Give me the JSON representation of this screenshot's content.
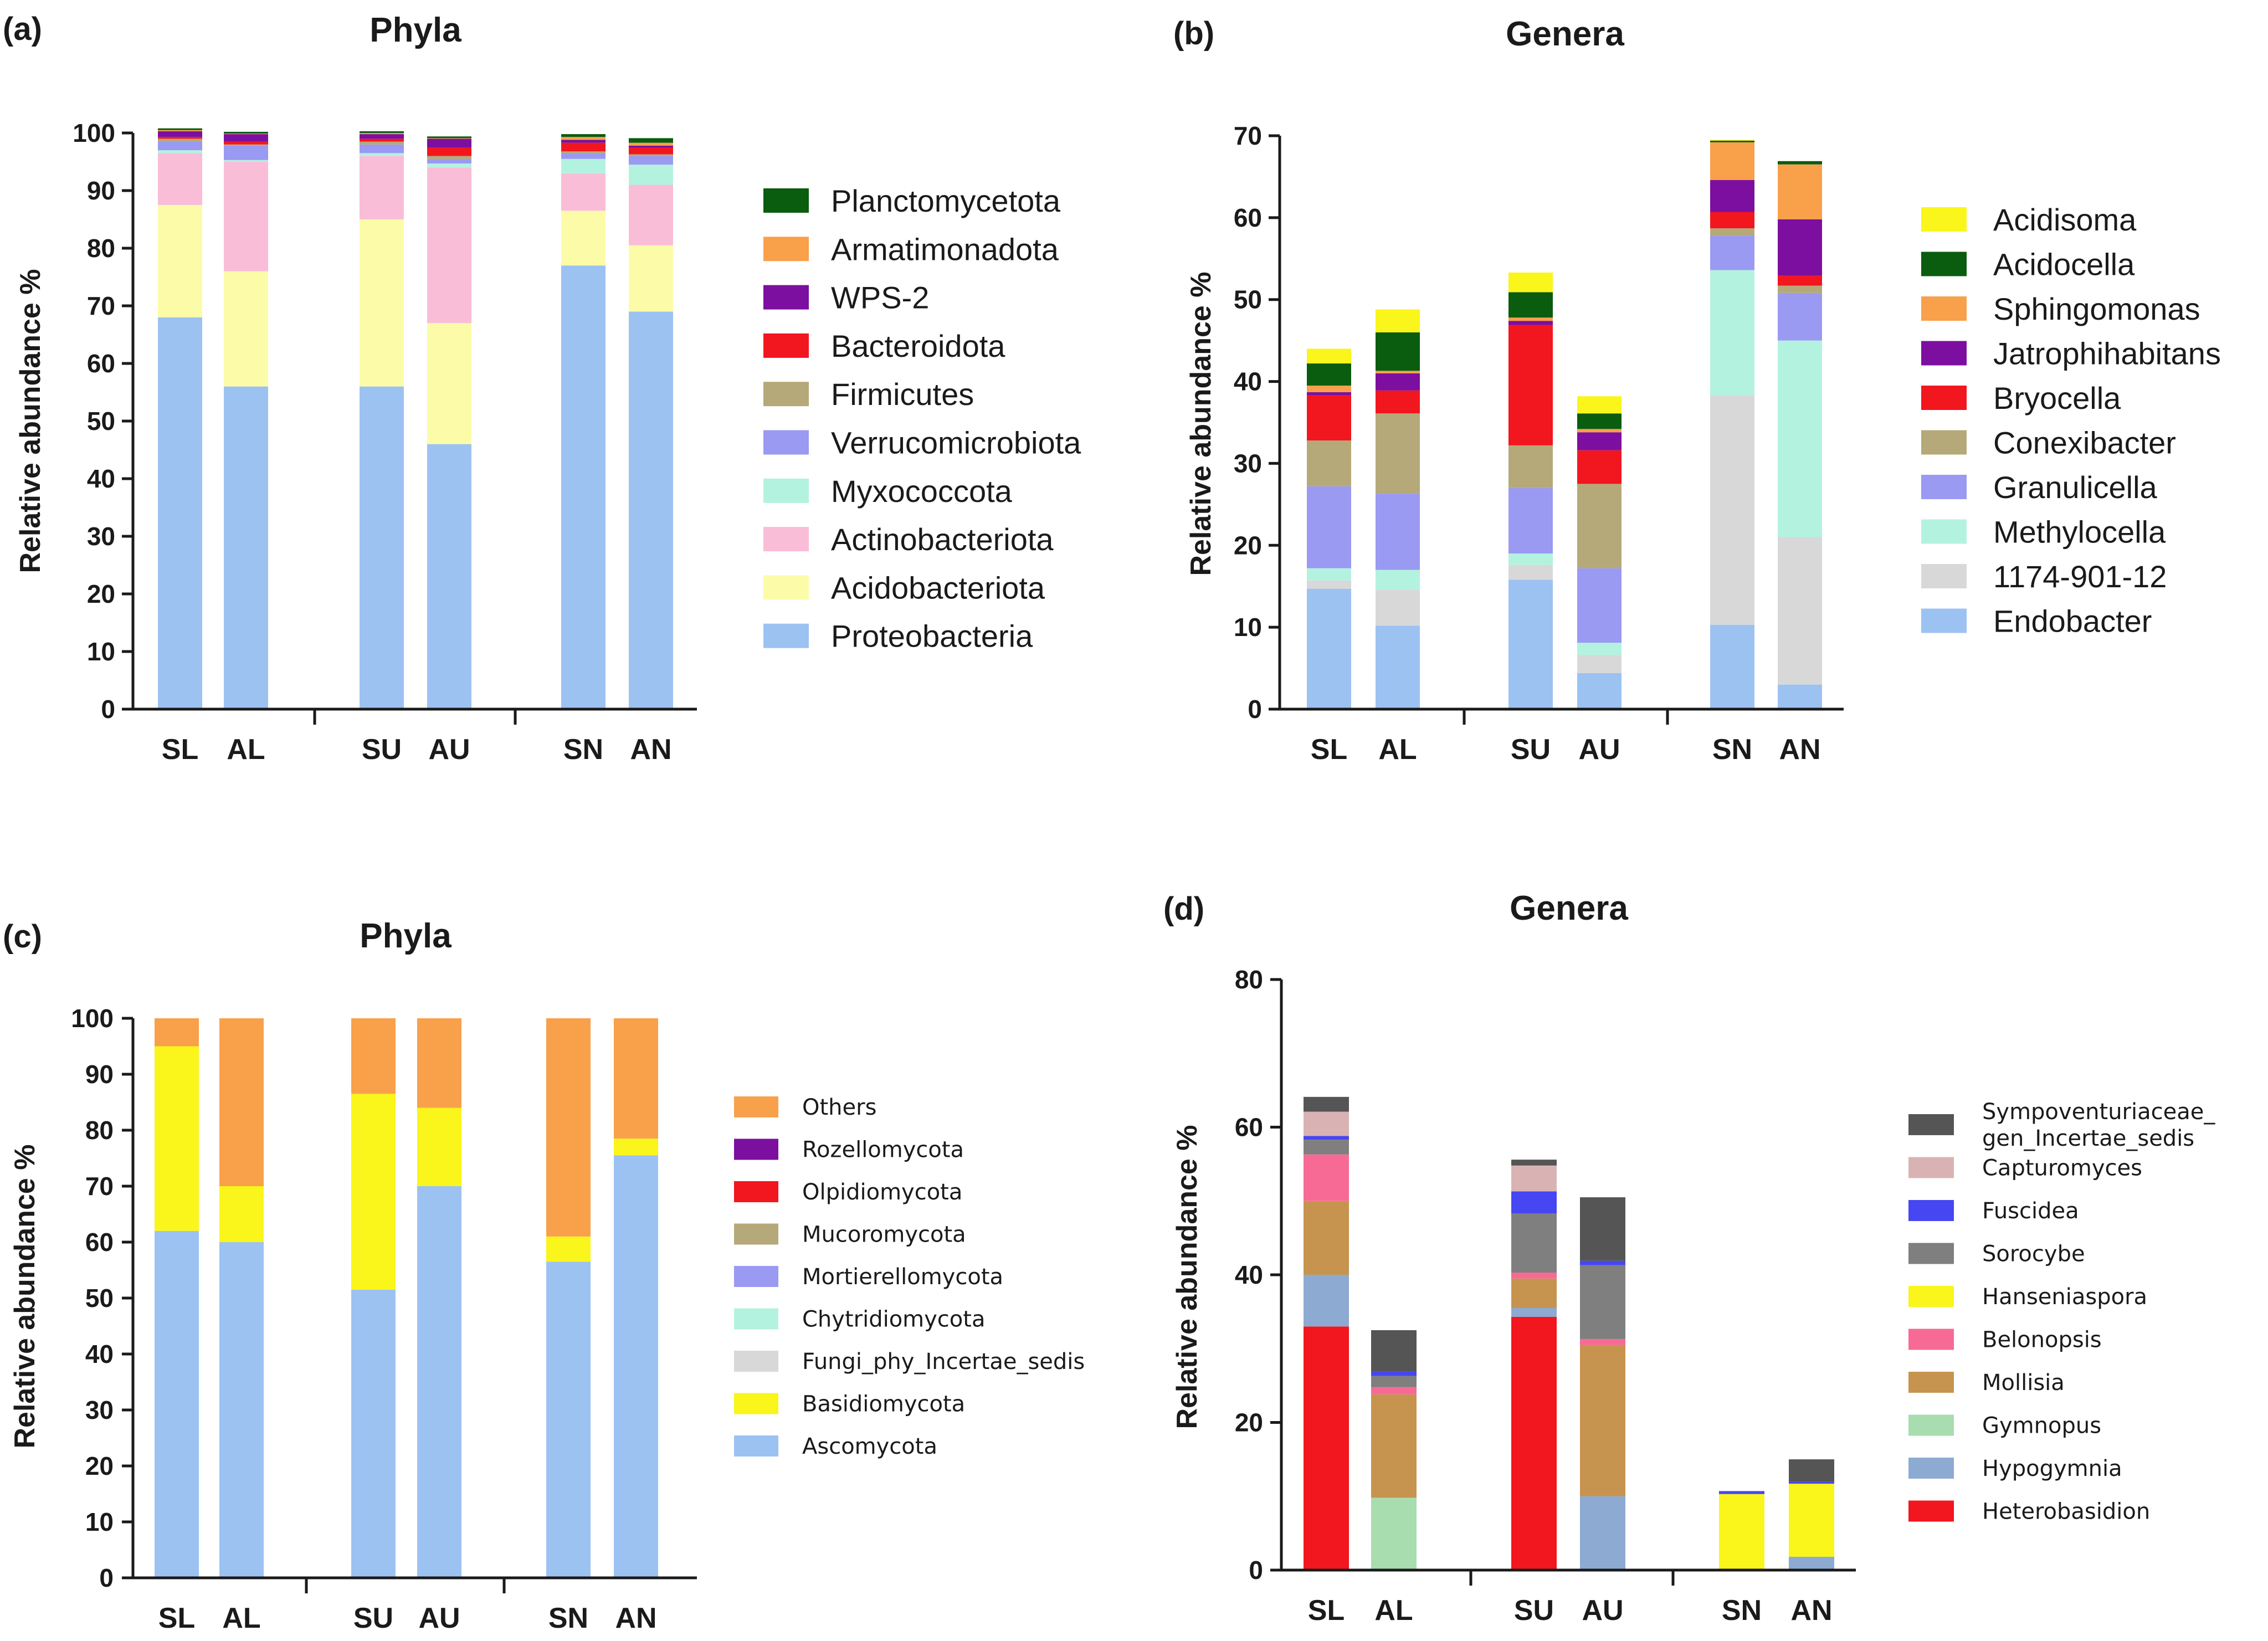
{
  "chart_data": [
    {
      "panel": "(a)",
      "type": "bar",
      "stacked": true,
      "title": "Phyla",
      "ylabel": "Relative abundance %",
      "xlabel": "",
      "ylim": [
        0,
        100
      ],
      "yticks": [
        0,
        10,
        20,
        30,
        40,
        50,
        60,
        70,
        80,
        90,
        100
      ],
      "categories": [
        "SL",
        "AL",
        "SU",
        "AU",
        "SN",
        "AN"
      ],
      "groups": [
        [
          "SL",
          "AL"
        ],
        [
          "SU",
          "AU"
        ],
        [
          "SN",
          "AN"
        ]
      ],
      "legend_position": "right",
      "series": [
        {
          "name": "Proteobacteria",
          "color": "#9CC2F2",
          "values": [
            68,
            56,
            56,
            46,
            77,
            69
          ]
        },
        {
          "name": "Acidobacteriota",
          "color": "#FCFCA8",
          "values": [
            19.5,
            20,
            29,
            21,
            9.5,
            11.5
          ]
        },
        {
          "name": "Actinobacteriota",
          "color": "#FABDD8",
          "values": [
            9,
            19,
            11,
            27,
            6.5,
            10.5
          ]
        },
        {
          "name": "Myxococcota",
          "color": "#B4F2E0",
          "values": [
            0.5,
            0.3,
            0.5,
            0.7,
            2.5,
            3.5
          ]
        },
        {
          "name": "Verrucomicrobiota",
          "color": "#9A9AF2",
          "values": [
            1.5,
            2.5,
            1.5,
            0.8,
            1,
            1.5
          ]
        },
        {
          "name": "Firmicutes",
          "color": "#B5A979",
          "values": [
            0.5,
            0.2,
            0.5,
            0.5,
            0.3,
            0.3
          ]
        },
        {
          "name": "Bacteroidota",
          "color": "#F2161F",
          "values": [
            0.3,
            0.5,
            0.5,
            1.5,
            1.5,
            1.2
          ]
        },
        {
          "name": "WPS-2",
          "color": "#7C0FA0",
          "values": [
            1,
            1.3,
            0.8,
            1.5,
            0.5,
            0.3
          ]
        },
        {
          "name": "Armatimonadota",
          "color": "#F9A04A",
          "values": [
            0.2,
            0.1,
            0.2,
            0.1,
            0.5,
            0.5
          ]
        },
        {
          "name": "Planctomycetota",
          "color": "#0A5C0F",
          "values": [
            0.3,
            0.3,
            0.3,
            0.3,
            0.5,
            0.8
          ]
        }
      ]
    },
    {
      "panel": "(b)",
      "type": "bar",
      "stacked": true,
      "title": "Genera",
      "ylabel": "Relative abundance %",
      "xlabel": "",
      "ylim": [
        0,
        70
      ],
      "yticks": [
        0,
        10,
        20,
        30,
        40,
        50,
        60,
        70
      ],
      "categories": [
        "SL",
        "AL",
        "SU",
        "AU",
        "SN",
        "AN"
      ],
      "groups": [
        [
          "SL",
          "AL"
        ],
        [
          "SU",
          "AU"
        ],
        [
          "SN",
          "AN"
        ]
      ],
      "legend_position": "right",
      "series": [
        {
          "name": "Endobacter",
          "color": "#9CC2F2",
          "values": [
            14.7,
            10.2,
            15.8,
            4.4,
            10.3,
            3
          ]
        },
        {
          "name": "1174-901-12",
          "color": "#D8D8D8",
          "values": [
            1,
            4.4,
            1.8,
            2.2,
            28,
            18
          ]
        },
        {
          "name": "Methylocella",
          "color": "#B4F2E0",
          "values": [
            1.5,
            2.4,
            1.4,
            1.5,
            15.3,
            24
          ]
        },
        {
          "name": "Granulicella",
          "color": "#9A9AF2",
          "values": [
            10,
            9.3,
            8,
            9.1,
            4.2,
            5.8
          ]
        },
        {
          "name": "Conexibacter",
          "color": "#B5A979",
          "values": [
            5.6,
            9.8,
            5.2,
            10.3,
            0.9,
            0.9
          ]
        },
        {
          "name": "Bryocella",
          "color": "#F2161F",
          "values": [
            5.5,
            2.8,
            14.7,
            4.1,
            2,
            1.2
          ]
        },
        {
          "name": "Jatrophihabitans",
          "color": "#7C0FA0",
          "values": [
            0.4,
            2.1,
            0.5,
            2.2,
            3.9,
            6.9
          ]
        },
        {
          "name": "Sphingomonas",
          "color": "#F9A04A",
          "values": [
            0.8,
            0.3,
            0.4,
            0.4,
            4.6,
            6.7
          ]
        },
        {
          "name": "Acidocella",
          "color": "#0A5C0F",
          "values": [
            2.7,
            4.7,
            3.1,
            1.9,
            0.2,
            0.4
          ]
        },
        {
          "name": "Acidisoma",
          "color": "#FAF51A",
          "values": [
            1.8,
            2.8,
            2.4,
            2.1,
            0.1,
            0
          ]
        }
      ]
    },
    {
      "panel": "(c)",
      "type": "bar",
      "stacked": true,
      "title": "Phyla",
      "ylabel": "Relative abundance %",
      "xlabel": "",
      "ylim": [
        0,
        100
      ],
      "yticks": [
        0,
        10,
        20,
        30,
        40,
        50,
        60,
        70,
        80,
        90,
        100
      ],
      "categories": [
        "SL",
        "AL",
        "SU",
        "AU",
        "SN",
        "AN"
      ],
      "groups": [
        [
          "SL",
          "AL"
        ],
        [
          "SU",
          "AU"
        ],
        [
          "SN",
          "AN"
        ]
      ],
      "legend_position": "right",
      "series": [
        {
          "name": "Ascomycota",
          "color": "#9CC2F2",
          "values": [
            62,
            60,
            51.5,
            70,
            56.5,
            75.5
          ]
        },
        {
          "name": "Basidiomycota",
          "color": "#FAF51A",
          "values": [
            33,
            10,
            35,
            14,
            4.5,
            3
          ]
        },
        {
          "name": "Fungi_phy_Incertae_sedis",
          "color": "#D8D8D8",
          "values": [
            0,
            0,
            0,
            0,
            0,
            0
          ]
        },
        {
          "name": "Chytridiomycota",
          "color": "#B4F2E0",
          "values": [
            0,
            0,
            0,
            0,
            0,
            0
          ]
        },
        {
          "name": "Mortierellomycota",
          "color": "#9A9AF2",
          "values": [
            0,
            0,
            0,
            0,
            0,
            0
          ]
        },
        {
          "name": "Mucoromycota",
          "color": "#B5A979",
          "values": [
            0,
            0,
            0,
            0,
            0,
            0
          ]
        },
        {
          "name": "Olpidiomycota",
          "color": "#F2161F",
          "values": [
            0,
            0,
            0,
            0,
            0,
            0
          ]
        },
        {
          "name": "Rozellomycota",
          "color": "#7C0FA0",
          "values": [
            0,
            0,
            0,
            0,
            0,
            0
          ]
        },
        {
          "name": "Others",
          "color": "#F9A04A",
          "values": [
            5,
            30,
            13.5,
            16,
            39,
            21.5
          ]
        }
      ]
    },
    {
      "panel": "(d)",
      "type": "bar",
      "stacked": true,
      "title": "Genera",
      "ylabel": "Relative abundance %",
      "xlabel": "",
      "ylim": [
        0,
        80
      ],
      "yticks": [
        0,
        20,
        40,
        60,
        80
      ],
      "categories": [
        "SL",
        "AL",
        "SU",
        "AU",
        "SN",
        "AN"
      ],
      "groups": [
        [
          "SL",
          "AL"
        ],
        [
          "SU",
          "AU"
        ],
        [
          "SN",
          "AN"
        ]
      ],
      "legend_position": "right",
      "series": [
        {
          "name": "Heterobasidion",
          "color": "#F2161F",
          "values": [
            33,
            0,
            34.3,
            0,
            0,
            0
          ]
        },
        {
          "name": "Hypogymnia",
          "color": "#8CAAD2",
          "values": [
            7,
            0,
            1.2,
            10,
            0,
            1.8
          ]
        },
        {
          "name": "Gymnopus",
          "color": "#A8DDB0",
          "values": [
            0,
            9.8,
            0,
            0,
            0,
            0
          ]
        },
        {
          "name": "Mollisia",
          "color": "#C6944F",
          "values": [
            10,
            14,
            4,
            20.5,
            0,
            0
          ]
        },
        {
          "name": "Belonopsis",
          "color": "#F76A95",
          "values": [
            6.3,
            1,
            0.8,
            0.8,
            0,
            0
          ]
        },
        {
          "name": "Hanseniaspora",
          "color": "#FAF51A",
          "values": [
            0,
            0,
            0,
            0,
            10.3,
            9.9
          ]
        },
        {
          "name": "Sorocybe",
          "color": "#7F7F7F",
          "values": [
            2,
            1.5,
            8,
            10,
            0,
            0
          ]
        },
        {
          "name": "Fuscidea",
          "color": "#4646F2",
          "values": [
            0.5,
            0.6,
            3,
            0.6,
            0.4,
            0.3
          ]
        },
        {
          "name": "Capturomyces",
          "color": "#D9B3B3",
          "values": [
            3.3,
            0,
            3.5,
            0,
            0,
            0
          ]
        },
        {
          "name": "Sympoventuriaceae_gen_Incertae_sedis",
          "label_lines": [
            "Sympoventuriaceae_",
            "gen_Incertae_sedis"
          ],
          "color": "#555555",
          "values": [
            2,
            5.6,
            0.8,
            8.6,
            0,
            3
          ]
        }
      ]
    }
  ]
}
